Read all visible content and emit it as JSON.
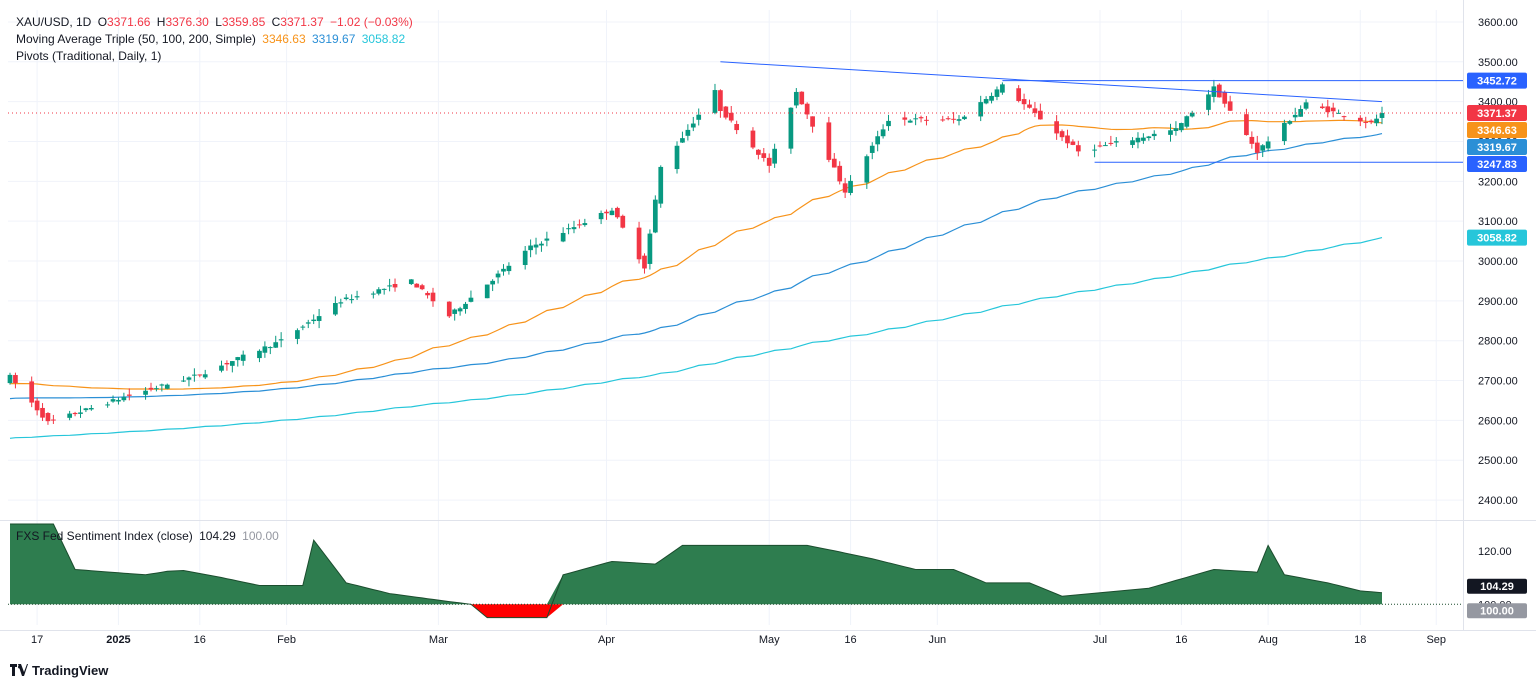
{
  "header": {
    "symbol": "XAU/USD, 1D",
    "o_label": "O",
    "o": "3371.66",
    "h_label": "H",
    "h": "3376.30",
    "l_label": "L",
    "l": "3359.85",
    "c_label": "C",
    "c": "3371.37",
    "change": "−1.02 (−0.03%)",
    "ma_title": "Moving Average Triple (50, 100, 200, Simple)",
    "ma50": "3346.63",
    "ma100": "3319.67",
    "ma200": "3058.82",
    "pivots": "Pivots (Traditional, Daily, 1)"
  },
  "sub_header": {
    "title": "FXS Fed Sentiment Index (close)",
    "value": "104.29",
    "baseline": "100.00"
  },
  "footer": {
    "brand": "TradingView"
  },
  "colors": {
    "up": "#089981",
    "down": "#f23645",
    "ma50": "#f7931a",
    "ma100": "#2b8fd6",
    "ma200": "#26c6da",
    "trendline": "#2962ff",
    "area": "#2e7d4f",
    "area_neg": "#ff0000",
    "last_price": "#f23645",
    "grid": "#f0f3fa"
  },
  "chart_data": [
    {
      "type": "candlestick",
      "title": "XAU/USD, 1D",
      "y_axis": {
        "ticks": [
          2400,
          2500,
          2600,
          2700,
          2800,
          2900,
          3000,
          3100,
          3200,
          3300,
          3400,
          3500,
          3600
        ],
        "range": [
          2350,
          3630
        ]
      },
      "x_axis": {
        "tick_labels": [
          "17",
          "2025",
          "16",
          "Feb",
          "Mar",
          "Apr",
          "May",
          "16",
          "Jun",
          "Jul",
          "16",
          "Aug",
          "18",
          "Sep"
        ]
      },
      "price_labels": [
        {
          "value": "3452.72",
          "color": "#2962ff"
        },
        {
          "value": "3371.37",
          "color": "#f23645"
        },
        {
          "value": "3346.63",
          "color": "#f7931a"
        },
        {
          "value": "3319.67",
          "color": "#2b8fd6"
        },
        {
          "value": "3247.83",
          "color": "#2962ff"
        },
        {
          "value": "3058.82",
          "color": "#26c6da"
        }
      ],
      "last_price": 3371.37,
      "horizontal_lines": [
        3452.72,
        3247.83
      ],
      "trendline": {
        "from": {
          "date": "2025-04-22",
          "price": 3500
        },
        "to": {
          "date": "2025-08-22",
          "price": 3400
        }
      },
      "candles_close_anchors": [
        {
          "date": "2024-12-12",
          "close": 2710
        },
        {
          "date": "2024-12-19",
          "close": 2595
        },
        {
          "date": "2025-01-02",
          "close": 2658
        },
        {
          "date": "2025-01-16",
          "close": 2715
        },
        {
          "date": "2025-01-31",
          "close": 2800
        },
        {
          "date": "2025-02-11",
          "close": 2900
        },
        {
          "date": "2025-02-24",
          "close": 2950
        },
        {
          "date": "2025-03-03",
          "close": 2862
        },
        {
          "date": "2025-03-18",
          "close": 3035
        },
        {
          "date": "2025-04-02",
          "close": 3130
        },
        {
          "date": "2025-04-08",
          "close": 2985
        },
        {
          "date": "2025-04-11",
          "close": 3235
        },
        {
          "date": "2025-04-21",
          "close": 3425
        },
        {
          "date": "2025-04-22",
          "close": 3380
        },
        {
          "date": "2025-05-01",
          "close": 3240
        },
        {
          "date": "2025-05-06",
          "close": 3425
        },
        {
          "date": "2025-05-15",
          "close": 3175
        },
        {
          "date": "2025-05-23",
          "close": 3355
        },
        {
          "date": "2025-06-05",
          "close": 3355
        },
        {
          "date": "2025-06-13",
          "close": 3440
        },
        {
          "date": "2025-06-27",
          "close": 3275
        },
        {
          "date": "2025-07-15",
          "close": 3330
        },
        {
          "date": "2025-07-22",
          "close": 3435
        },
        {
          "date": "2025-07-30",
          "close": 3275
        },
        {
          "date": "2025-08-08",
          "close": 3395
        },
        {
          "date": "2025-08-20",
          "close": 3345
        },
        {
          "date": "2025-08-22",
          "close": 3371.37
        }
      ],
      "series": [
        {
          "name": "MA 50",
          "value_last": 3346.63
        },
        {
          "name": "MA 100",
          "value_last": 3319.67
        },
        {
          "name": "MA 200",
          "value_last": 3058.82
        }
      ]
    },
    {
      "type": "area",
      "title": "FXS Fed Sentiment Index (close)",
      "y_axis": {
        "ticks": [
          100,
          120
        ],
        "range": [
          93,
          130
        ]
      },
      "baseline": 100,
      "last": 104.29,
      "points": [
        {
          "date": "2024-12-12",
          "value": 130
        },
        {
          "date": "2024-12-20",
          "value": 130
        },
        {
          "date": "2024-12-24",
          "value": 113
        },
        {
          "date": "2025-01-06",
          "value": 111
        },
        {
          "date": "2025-01-12",
          "value": 113
        },
        {
          "date": "2025-01-20",
          "value": 110
        },
        {
          "date": "2025-01-27",
          "value": 107
        },
        {
          "date": "2025-02-04",
          "value": 107
        },
        {
          "date": "2025-02-06",
          "value": 124
        },
        {
          "date": "2025-02-12",
          "value": 108
        },
        {
          "date": "2025-02-20",
          "value": 104
        },
        {
          "date": "2025-03-03",
          "value": 101
        },
        {
          "date": "2025-03-07",
          "value": 100
        },
        {
          "date": "2025-03-10",
          "value": 95
        },
        {
          "date": "2025-03-21",
          "value": 95
        },
        {
          "date": "2025-03-24",
          "value": 111
        },
        {
          "date": "2025-04-02",
          "value": 116
        },
        {
          "date": "2025-04-10",
          "value": 115
        },
        {
          "date": "2025-04-15",
          "value": 122
        },
        {
          "date": "2025-05-08",
          "value": 122
        },
        {
          "date": "2025-05-13",
          "value": 120
        },
        {
          "date": "2025-05-20",
          "value": 117
        },
        {
          "date": "2025-05-28",
          "value": 113
        },
        {
          "date": "2025-06-04",
          "value": 113
        },
        {
          "date": "2025-06-10",
          "value": 108
        },
        {
          "date": "2025-06-18",
          "value": 108
        },
        {
          "date": "2025-06-24",
          "value": 103
        },
        {
          "date": "2025-07-10",
          "value": 106
        },
        {
          "date": "2025-07-22",
          "value": 113
        },
        {
          "date": "2025-07-30",
          "value": 112
        },
        {
          "date": "2025-08-01",
          "value": 122
        },
        {
          "date": "2025-08-04",
          "value": 111
        },
        {
          "date": "2025-08-12",
          "value": 108
        },
        {
          "date": "2025-08-18",
          "value": 105
        },
        {
          "date": "2025-08-22",
          "value": 104.29
        }
      ],
      "price_labels": [
        {
          "value": "104.29"
        },
        {
          "value": "100.00"
        }
      ]
    }
  ]
}
